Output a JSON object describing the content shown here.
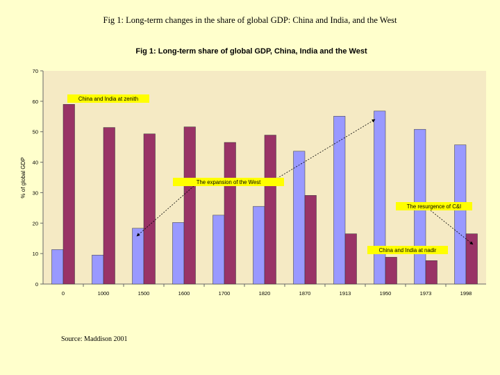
{
  "slide": {
    "title": "Fig 1: Long-term changes in the share of global GDP: China and India, and the West",
    "source": "Source: Maddison 2001"
  },
  "colors": {
    "background": "#ffffcc",
    "plot_area": "#f5eac4",
    "west": "#9999ff",
    "china_india": "#993366",
    "annotation_fill": "#ffff00"
  },
  "chart_data": {
    "type": "bar",
    "title": "Fig 1: Long-term share of global GDP, China, India and the West",
    "xlabel": "",
    "ylabel": "% of global GDP",
    "ylim": [
      0,
      70
    ],
    "yticks": [
      0,
      10,
      20,
      30,
      40,
      50,
      60,
      70
    ],
    "grid": false,
    "categories": [
      "0",
      "1000",
      "1500",
      "1600",
      "1700",
      "1820",
      "1870",
      "1913",
      "1950",
      "1973",
      "1998"
    ],
    "series": [
      {
        "name": "",
        "values": [
          11.3,
          9.5,
          18.3,
          20.2,
          22.6,
          25.5,
          43.6,
          55.1,
          56.8,
          50.8,
          45.7
        ]
      },
      {
        "name": "",
        "values": [
          59.0,
          51.4,
          49.3,
          51.6,
          46.5,
          48.9,
          29.1,
          16.5,
          8.8,
          7.7,
          16.5
        ]
      }
    ],
    "annotations": [
      {
        "text": "China and India at zenith",
        "category": "0"
      },
      {
        "text": "The expansion of the West",
        "from": "1500",
        "to": "1950"
      },
      {
        "text": "The resurgence of C&I",
        "category": "1998"
      },
      {
        "text": "China and India at nadir",
        "category": "1950"
      }
    ]
  }
}
